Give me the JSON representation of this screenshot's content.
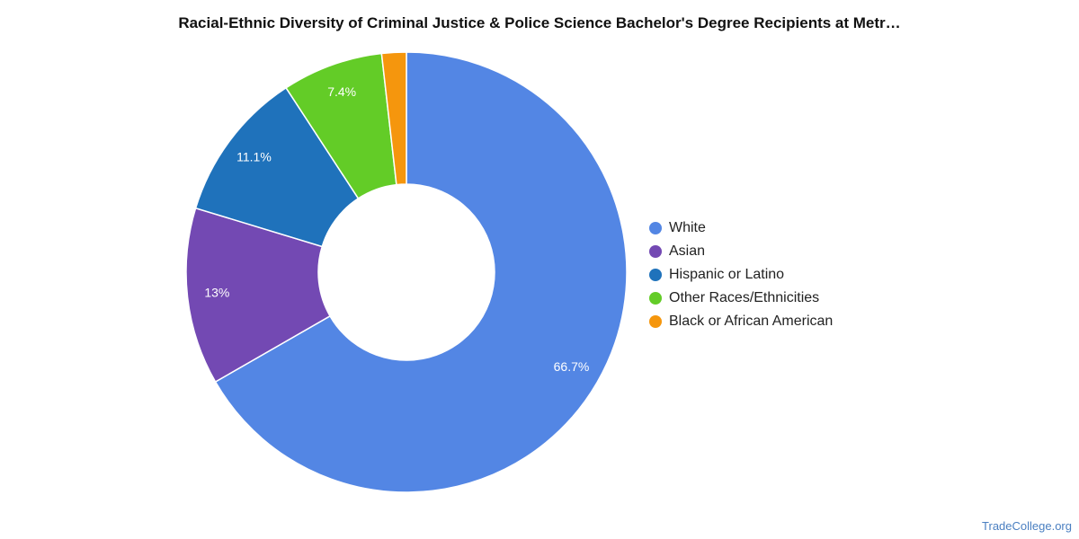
{
  "chart_data": {
    "type": "pie",
    "variant": "donut",
    "title": "Racial-Ethnic Diversity of Criminal Justice & Police Science Bachelor's Degree Recipients at Metr…",
    "legend_position": "right",
    "slices": [
      {
        "name": "White",
        "value": 66.7,
        "label": "66.7%",
        "color": "#5386e4"
      },
      {
        "name": "Asian",
        "value": 13.0,
        "label": "13%",
        "color": "#7349b3"
      },
      {
        "name": "Hispanic or Latino",
        "value": 11.1,
        "label": "11.1%",
        "color": "#1f72bb"
      },
      {
        "name": "Other Races/Ethnicities",
        "value": 7.4,
        "label": "7.4%",
        "color": "#63cc27"
      },
      {
        "name": "Black or African American",
        "value": 1.8,
        "label": "",
        "color": "#f5960d"
      }
    ]
  },
  "footer": {
    "source": "TradeCollege.org"
  }
}
